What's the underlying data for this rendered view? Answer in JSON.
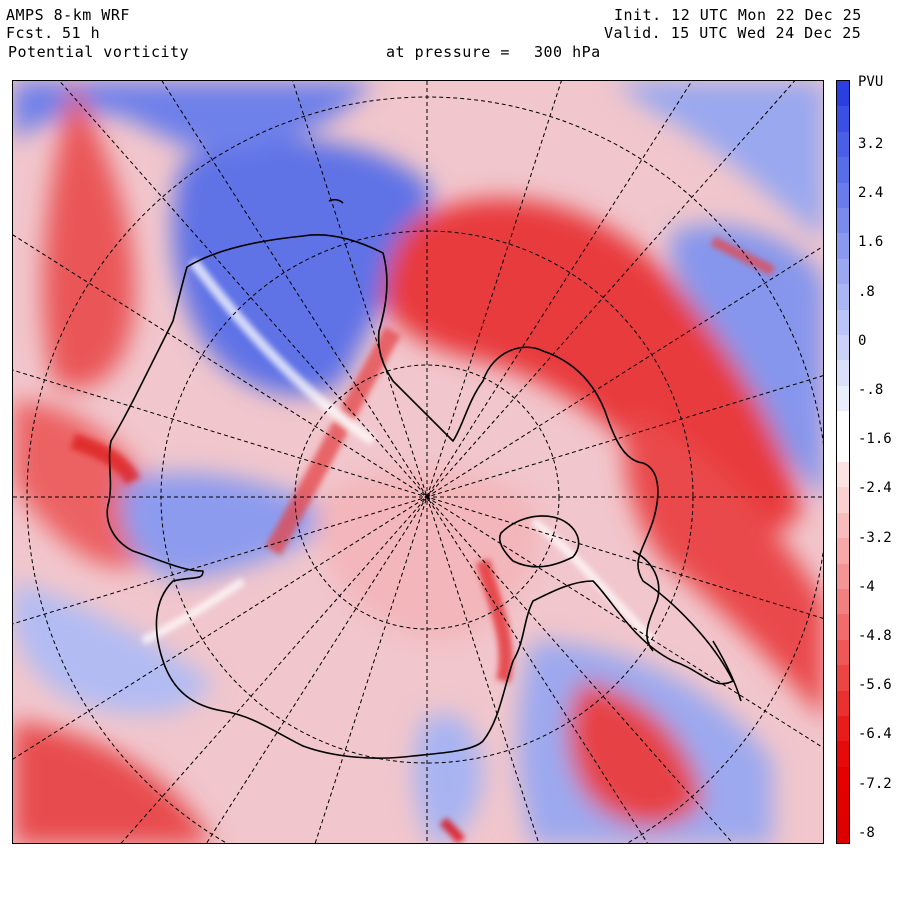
{
  "header": {
    "model": "AMPS 8-km WRF",
    "forecast_label": "Fcst.",
    "forecast_hours": "51 h",
    "field": "Potential vorticity",
    "init": "Init. 12 UTC Mon 22 Dec 25",
    "valid": "Valid. 15 UTC Wed 24 Dec 25",
    "level_label": "at pressure =",
    "level_value": "300 hPa"
  },
  "colorbar": {
    "unit": "PVU",
    "tick_labels": [
      "3.2",
      "2.4",
      "1.6",
      ".8",
      "0",
      "-.8",
      "-1.6",
      "-2.4",
      "-3.2",
      "-4",
      "-4.8",
      "-5.6",
      "-6.4",
      "-7.2",
      "-8"
    ],
    "colors": [
      "#2b3fe0",
      "#3a4fe3",
      "#4a5ee6",
      "#5a6de9",
      "#6a7cec",
      "#7a8bee",
      "#8a99f0",
      "#9aa8f2",
      "#aab6f4",
      "#bac4f6",
      "#cad2f8",
      "#dae0fa",
      "#eaeefc",
      "#ffffff",
      "#ffffff",
      "#fde2e2",
      "#fbd0d0",
      "#f9bcbc",
      "#f7a8a8",
      "#f59494",
      "#f38080",
      "#f16c6c",
      "#ef5858",
      "#ed4444",
      "#eb3030",
      "#e91c1c",
      "#e70a0a",
      "#e50000",
      "#e00000",
      "#dd0000"
    ]
  },
  "map": {
    "colors": {
      "positive_pv": "#5a6fe8",
      "light_positive": "#c8d0f7",
      "neutral": "#ffffff",
      "light_negative": "#f7b0b0",
      "negative_pv": "#e8383a",
      "strong_negative": "#e00000"
    }
  }
}
